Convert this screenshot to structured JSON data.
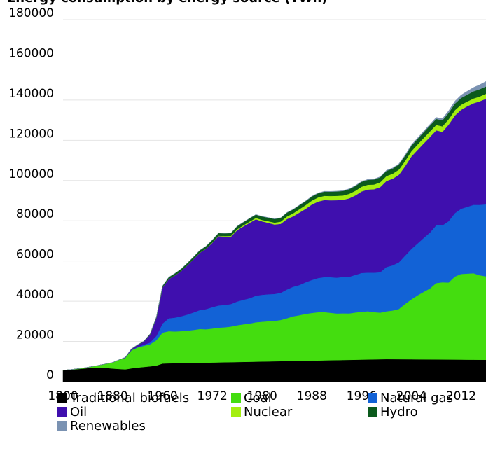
{
  "chart_data": {
    "type": "stacked_area",
    "title": "Energy consumption by energy source (TWh)",
    "categories": [
      "1800",
      null,
      null,
      null,
      null,
      null,
      null,
      null,
      "1880",
      null,
      null,
      null,
      null,
      null,
      null,
      null,
      "1960",
      null,
      null,
      null,
      null,
      null,
      null,
      null,
      "1972",
      null,
      null,
      null,
      null,
      null,
      null,
      null,
      "1980",
      null,
      null,
      null,
      null,
      null,
      null,
      null,
      "1988",
      null,
      null,
      null,
      null,
      null,
      null,
      null,
      "1996",
      null,
      null,
      null,
      null,
      null,
      null,
      null,
      "2004",
      null,
      null,
      null,
      null,
      null,
      null,
      null,
      "2012",
      null,
      null,
      null,
      null
    ],
    "ylim": [
      0,
      180000
    ],
    "yticks": [
      0,
      20000,
      40000,
      60000,
      80000,
      100000,
      120000,
      140000,
      160000,
      180000
    ],
    "grid": true,
    "series": [
      {
        "name": "Traditional biofuels",
        "color": "#000000",
        "values": [
          5600,
          5800,
          6100,
          6400,
          6700,
          6900,
          7000,
          6800,
          6500,
          6300,
          6100,
          6600,
          7000,
          7300,
          7600,
          8000,
          9000,
          9100,
          9160,
          9220,
          9280,
          9340,
          9400,
          9460,
          9520,
          9580,
          9640,
          9700,
          9760,
          9820,
          9880,
          9940,
          10000,
          10060,
          10120,
          10180,
          10240,
          10300,
          10360,
          10420,
          10480,
          10540,
          10600,
          10660,
          10720,
          10780,
          10840,
          10900,
          10960,
          11020,
          11080,
          11140,
          11200,
          11180,
          11160,
          11140,
          11120,
          11100,
          11080,
          11060,
          11040,
          11020,
          11000,
          10980,
          10960,
          10940,
          10920,
          10900,
          10880
        ]
      },
      {
        "name": "Coal",
        "color": "#44dd0f",
        "values": [
          100,
          130,
          180,
          280,
          450,
          800,
          1300,
          2100,
          3000,
          4500,
          5700,
          9000,
          10000,
          10500,
          11000,
          12600,
          15400,
          16000,
          15800,
          15900,
          16100,
          16400,
          16800,
          16600,
          16900,
          17300,
          17400,
          17700,
          18300,
          18700,
          19000,
          19600,
          19800,
          20000,
          20100,
          20500,
          21300,
          22200,
          22700,
          23300,
          23700,
          24000,
          24000,
          23600,
          23200,
          23200,
          23100,
          23500,
          23800,
          24000,
          23500,
          23200,
          23800,
          24200,
          25000,
          27500,
          29800,
          31800,
          33600,
          35300,
          38000,
          38400,
          38300,
          41300,
          42600,
          42800,
          43000,
          42000,
          41500
        ]
      },
      {
        "name": "Natural gas",
        "color": "#1262d6",
        "values": [
          0,
          0,
          0,
          0,
          0,
          0,
          0,
          30,
          60,
          60,
          60,
          150,
          230,
          550,
          870,
          2100,
          4500,
          6400,
          6900,
          7400,
          8000,
          8700,
          9400,
          10000,
          10600,
          11000,
          11100,
          11200,
          11800,
          12200,
          12600,
          13200,
          13400,
          13400,
          13400,
          13500,
          14300,
          14700,
          15000,
          15700,
          16400,
          17000,
          17400,
          17700,
          17800,
          18100,
          18200,
          18700,
          19300,
          19200,
          19600,
          20100,
          22000,
          22500,
          23200,
          24000,
          25000,
          25800,
          26800,
          27800,
          28700,
          28300,
          30500,
          31500,
          32400,
          33200,
          34000,
          35000,
          35800
        ]
      },
      {
        "name": "Oil",
        "color": "#3f0fae",
        "values": [
          0,
          0,
          0,
          0,
          0,
          0,
          0,
          0,
          0,
          0,
          200,
          500,
          1000,
          1600,
          4000,
          9000,
          18000,
          19500,
          21000,
          22500,
          24500,
          26500,
          28500,
          30000,
          32000,
          34500,
          34000,
          33500,
          35500,
          36500,
          37500,
          38000,
          36500,
          35500,
          34500,
          34300,
          35000,
          35000,
          36000,
          36500,
          37500,
          38000,
          38300,
          38200,
          38500,
          38300,
          39000,
          39500,
          40500,
          41300,
          41500,
          42300,
          42800,
          43000,
          43500,
          44500,
          46000,
          46500,
          47000,
          47500,
          47200,
          46500,
          48000,
          48500,
          49200,
          50000,
          50500,
          51500,
          52500
        ]
      },
      {
        "name": "Nuclear",
        "color": "#a4ee10",
        "values": [
          0,
          0,
          0,
          0,
          0,
          0,
          0,
          0,
          0,
          0,
          0,
          0,
          0,
          0,
          0,
          0,
          0,
          30,
          40,
          50,
          60,
          70,
          80,
          110,
          150,
          200,
          260,
          380,
          450,
          550,
          640,
          660,
          710,
          830,
          960,
          1100,
          1300,
          1500,
          1700,
          1850,
          1950,
          2050,
          2090,
          2140,
          2160,
          2170,
          2250,
          2300,
          2370,
          2390,
          2340,
          2400,
          2450,
          2520,
          2570,
          2610,
          2630,
          2710,
          2710,
          2760,
          2710,
          2730,
          2660,
          2690,
          2520,
          2370,
          2380,
          2410,
          2450
        ]
      },
      {
        "name": "Hydro",
        "color": "#0b5a1c",
        "values": [
          0,
          0,
          0,
          0,
          0,
          0,
          0,
          0,
          0,
          20,
          50,
          100,
          160,
          230,
          300,
          400,
          700,
          900,
          950,
          1000,
          1050,
          1100,
          1150,
          1200,
          1260,
          1300,
          1360,
          1420,
          1480,
          1520,
          1580,
          1650,
          1700,
          1730,
          1780,
          1830,
          1890,
          1920,
          1950,
          1980,
          2030,
          2060,
          2100,
          2150,
          2170,
          2250,
          2300,
          2400,
          2420,
          2440,
          2480,
          2500,
          2560,
          2550,
          2580,
          2580,
          2720,
          2790,
          2870,
          2930,
          2990,
          2980,
          3160,
          3230,
          3350,
          3410,
          3550,
          3600,
          3650
        ]
      },
      {
        "name": "Renewables",
        "color": "#7a92b2",
        "values": [
          0,
          0,
          0,
          0,
          0,
          0,
          0,
          0,
          0,
          0,
          0,
          0,
          0,
          0,
          0,
          0,
          0,
          20,
          20,
          20,
          25,
          25,
          30,
          30,
          35,
          35,
          40,
          45,
          50,
          55,
          60,
          65,
          70,
          80,
          90,
          100,
          110,
          120,
          130,
          140,
          150,
          160,
          170,
          180,
          190,
          200,
          210,
          220,
          230,
          240,
          260,
          270,
          290,
          310,
          340,
          370,
          420,
          480,
          550,
          640,
          760,
          860,
          1040,
          1220,
          1460,
          1700,
          1930,
          2230,
          2500
        ]
      }
    ]
  }
}
